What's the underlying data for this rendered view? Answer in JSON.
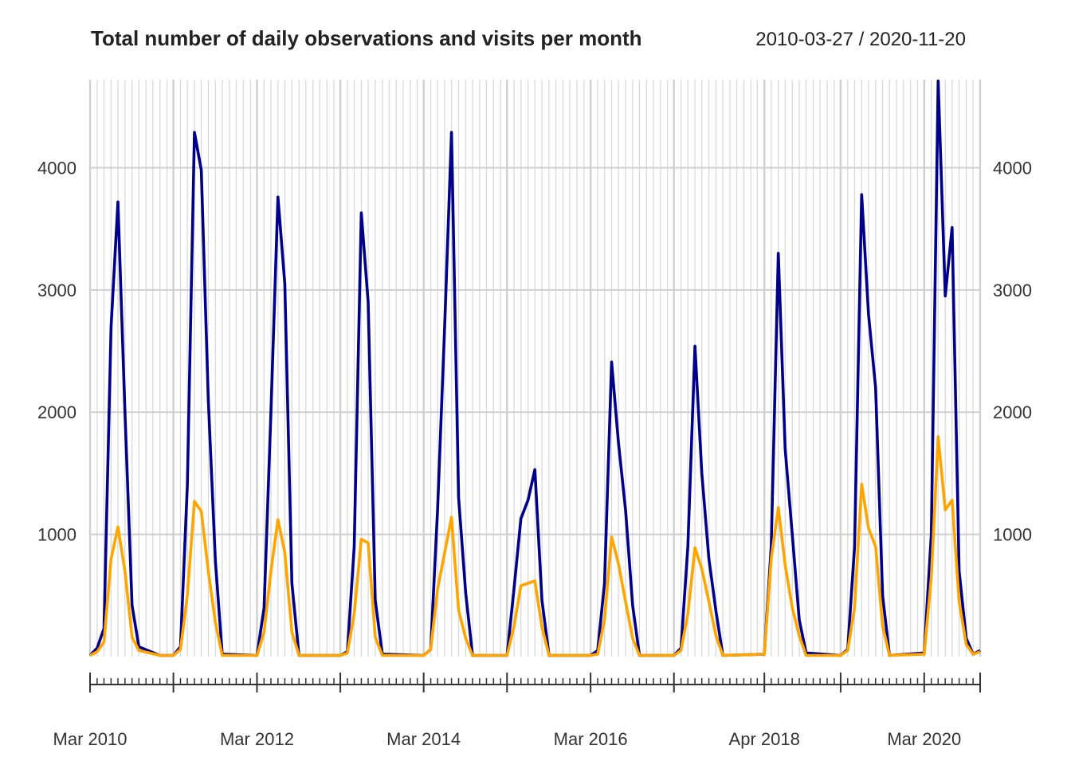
{
  "chart_data": {
    "type": "line",
    "title": "Total number of daily observations and visits per month",
    "date_range": "2010-03-27 / 2020-11-20",
    "xlabel": "",
    "ylabel": "",
    "xlim": [
      "2010-03-01",
      "2020-11-01"
    ],
    "ylim": [
      0,
      4720
    ],
    "y_ticks": [
      1000,
      2000,
      3000,
      4000
    ],
    "y_tick_labels": [
      "1000",
      "2000",
      "3000",
      "4000"
    ],
    "x_tick_labels": [
      {
        "label": "Mar 2010",
        "date": "2010-03-01"
      },
      {
        "label": "Mar 2012",
        "date": "2012-03-01"
      },
      {
        "label": "Mar 2014",
        "date": "2014-03-01"
      },
      {
        "label": "Mar 2016",
        "date": "2016-03-01"
      },
      {
        "label": "Apr 2018",
        "date": "2018-04-01"
      },
      {
        "label": "Mar 2020",
        "date": "2020-03-01"
      }
    ],
    "major_ticks": [
      "2010-03-01",
      "2011-03-01",
      "2012-03-01",
      "2013-03-01",
      "2014-03-01",
      "2015-03-01",
      "2016-03-01",
      "2017-03-01",
      "2018-04-01",
      "2019-03-01",
      "2020-03-01",
      "2020-11-01"
    ],
    "grid": true,
    "series": [
      {
        "color": "#00008B",
        "points": [
          [
            "2010-03-01",
            10
          ],
          [
            "2010-04-01",
            70
          ],
          [
            "2010-05-01",
            230
          ],
          [
            "2010-06-01",
            2700
          ],
          [
            "2010-07-01",
            3720
          ],
          [
            "2010-08-01",
            2000
          ],
          [
            "2010-09-01",
            420
          ],
          [
            "2010-10-01",
            80
          ],
          [
            "2011-01-01",
            10
          ],
          [
            "2011-03-01",
            10
          ],
          [
            "2011-04-01",
            80
          ],
          [
            "2011-05-01",
            1400
          ],
          [
            "2011-06-01",
            4290
          ],
          [
            "2011-07-01",
            3980
          ],
          [
            "2011-08-01",
            2100
          ],
          [
            "2011-09-01",
            780
          ],
          [
            "2011-10-01",
            20
          ],
          [
            "2012-03-01",
            10
          ],
          [
            "2012-04-01",
            400
          ],
          [
            "2012-05-01",
            2000
          ],
          [
            "2012-06-01",
            3760
          ],
          [
            "2012-07-01",
            3050
          ],
          [
            "2012-08-01",
            600
          ],
          [
            "2012-09-01",
            10
          ],
          [
            "2013-03-01",
            10
          ],
          [
            "2013-04-01",
            40
          ],
          [
            "2013-05-01",
            900
          ],
          [
            "2013-06-01",
            3630
          ],
          [
            "2013-07-01",
            2900
          ],
          [
            "2013-08-01",
            460
          ],
          [
            "2013-09-01",
            20
          ],
          [
            "2014-03-01",
            10
          ],
          [
            "2014-04-01",
            60
          ],
          [
            "2014-05-01",
            1200
          ],
          [
            "2014-06-01",
            2700
          ],
          [
            "2014-07-01",
            4290
          ],
          [
            "2014-08-01",
            1300
          ],
          [
            "2014-09-01",
            520
          ],
          [
            "2014-10-01",
            10
          ],
          [
            "2015-03-01",
            10
          ],
          [
            "2015-04-01",
            560
          ],
          [
            "2015-05-01",
            1130
          ],
          [
            "2015-06-01",
            1280
          ],
          [
            "2015-07-01",
            1530
          ],
          [
            "2015-08-01",
            460
          ],
          [
            "2015-09-01",
            10
          ],
          [
            "2016-03-01",
            10
          ],
          [
            "2016-04-01",
            50
          ],
          [
            "2016-05-01",
            600
          ],
          [
            "2016-06-01",
            2410
          ],
          [
            "2016-07-01",
            1750
          ],
          [
            "2016-08-01",
            1200
          ],
          [
            "2016-09-01",
            420
          ],
          [
            "2016-10-01",
            10
          ],
          [
            "2017-03-01",
            10
          ],
          [
            "2017-04-01",
            70
          ],
          [
            "2017-05-01",
            900
          ],
          [
            "2017-06-01",
            2540
          ],
          [
            "2017-07-01",
            1500
          ],
          [
            "2017-08-01",
            800
          ],
          [
            "2017-09-01",
            370
          ],
          [
            "2017-10-01",
            10
          ],
          [
            "2018-04-01",
            20
          ],
          [
            "2018-05-01",
            900
          ],
          [
            "2018-06-01",
            3300
          ],
          [
            "2018-07-01",
            1700
          ],
          [
            "2018-08-01",
            1000
          ],
          [
            "2018-09-01",
            300
          ],
          [
            "2018-10-01",
            30
          ],
          [
            "2019-03-01",
            10
          ],
          [
            "2019-04-01",
            60
          ],
          [
            "2019-05-01",
            900
          ],
          [
            "2019-06-01",
            3780
          ],
          [
            "2019-07-01",
            2800
          ],
          [
            "2019-08-01",
            2200
          ],
          [
            "2019-09-01",
            500
          ],
          [
            "2019-10-01",
            10
          ],
          [
            "2020-03-01",
            30
          ],
          [
            "2020-04-01",
            1000
          ],
          [
            "2020-05-01",
            4710
          ],
          [
            "2020-06-01",
            2950
          ],
          [
            "2020-07-01",
            3510
          ],
          [
            "2020-08-01",
            700
          ],
          [
            "2020-09-01",
            150
          ],
          [
            "2020-10-01",
            20
          ],
          [
            "2020-11-01",
            50
          ]
        ]
      },
      {
        "color": "#FFA500",
        "points": [
          [
            "2010-03-01",
            10
          ],
          [
            "2010-04-01",
            40
          ],
          [
            "2010-05-01",
            120
          ],
          [
            "2010-06-01",
            800
          ],
          [
            "2010-07-01",
            1060
          ],
          [
            "2010-08-01",
            700
          ],
          [
            "2010-09-01",
            160
          ],
          [
            "2010-10-01",
            50
          ],
          [
            "2011-01-01",
            10
          ],
          [
            "2011-03-01",
            10
          ],
          [
            "2011-04-01",
            60
          ],
          [
            "2011-05-01",
            500
          ],
          [
            "2011-06-01",
            1270
          ],
          [
            "2011-07-01",
            1190
          ],
          [
            "2011-08-01",
            700
          ],
          [
            "2011-09-01",
            280
          ],
          [
            "2011-10-01",
            10
          ],
          [
            "2012-03-01",
            10
          ],
          [
            "2012-04-01",
            200
          ],
          [
            "2012-05-01",
            700
          ],
          [
            "2012-06-01",
            1120
          ],
          [
            "2012-07-01",
            850
          ],
          [
            "2012-08-01",
            200
          ],
          [
            "2012-09-01",
            10
          ],
          [
            "2013-03-01",
            10
          ],
          [
            "2013-04-01",
            30
          ],
          [
            "2013-05-01",
            350
          ],
          [
            "2013-06-01",
            960
          ],
          [
            "2013-07-01",
            930
          ],
          [
            "2013-08-01",
            160
          ],
          [
            "2013-09-01",
            10
          ],
          [
            "2014-03-01",
            10
          ],
          [
            "2014-04-01",
            60
          ],
          [
            "2014-05-01",
            550
          ],
          [
            "2014-06-01",
            850
          ],
          [
            "2014-07-01",
            1140
          ],
          [
            "2014-08-01",
            380
          ],
          [
            "2014-09-01",
            150
          ],
          [
            "2014-10-01",
            10
          ],
          [
            "2015-03-01",
            10
          ],
          [
            "2015-04-01",
            250
          ],
          [
            "2015-05-01",
            580
          ],
          [
            "2015-06-01",
            600
          ],
          [
            "2015-07-01",
            620
          ],
          [
            "2015-08-01",
            240
          ],
          [
            "2015-09-01",
            10
          ],
          [
            "2016-03-01",
            10
          ],
          [
            "2016-04-01",
            20
          ],
          [
            "2016-05-01",
            300
          ],
          [
            "2016-06-01",
            980
          ],
          [
            "2016-07-01",
            760
          ],
          [
            "2016-08-01",
            450
          ],
          [
            "2016-09-01",
            150
          ],
          [
            "2016-10-01",
            10
          ],
          [
            "2017-03-01",
            10
          ],
          [
            "2017-04-01",
            50
          ],
          [
            "2017-05-01",
            350
          ],
          [
            "2017-06-01",
            890
          ],
          [
            "2017-07-01",
            720
          ],
          [
            "2017-08-01",
            450
          ],
          [
            "2017-09-01",
            170
          ],
          [
            "2017-10-01",
            10
          ],
          [
            "2018-04-01",
            20
          ],
          [
            "2018-05-01",
            800
          ],
          [
            "2018-06-01",
            1220
          ],
          [
            "2018-07-01",
            750
          ],
          [
            "2018-08-01",
            400
          ],
          [
            "2018-09-01",
            170
          ],
          [
            "2018-10-01",
            10
          ],
          [
            "2019-03-01",
            10
          ],
          [
            "2019-04-01",
            50
          ],
          [
            "2019-05-01",
            400
          ],
          [
            "2019-06-01",
            1410
          ],
          [
            "2019-07-01",
            1050
          ],
          [
            "2019-08-01",
            900
          ],
          [
            "2019-09-01",
            250
          ],
          [
            "2019-10-01",
            10
          ],
          [
            "2020-03-01",
            20
          ],
          [
            "2020-04-01",
            650
          ],
          [
            "2020-05-01",
            1800
          ],
          [
            "2020-06-01",
            1200
          ],
          [
            "2020-07-01",
            1280
          ],
          [
            "2020-08-01",
            450
          ],
          [
            "2020-09-01",
            100
          ],
          [
            "2020-10-01",
            20
          ],
          [
            "2020-11-01",
            40
          ]
        ]
      }
    ]
  }
}
